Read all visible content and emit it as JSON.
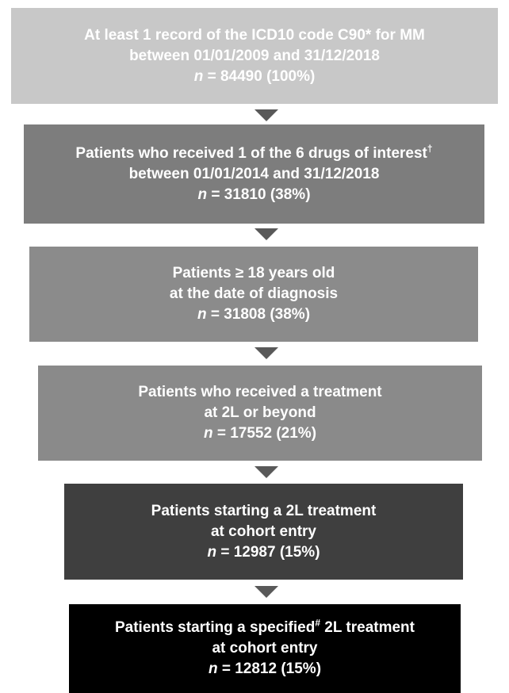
{
  "nodes": [
    {
      "line1": "At least 1 record of the ICD10 code C90* for MM",
      "line2": "between 01/01/2009 and 31/12/2018",
      "n_symbol": "n",
      "count": " = 84490 (100%)"
    },
    {
      "line1": "Patients who received 1 of the 6 drugs of interest",
      "line1_mark": "†",
      "line2": "between 01/01/2014 and 31/12/2018",
      "n_symbol": "n",
      "count": " = 31810 (38%)"
    },
    {
      "line1": "Patients ≥ 18 years old",
      "line2": "at the date of diagnosis",
      "n_symbol": "n",
      "count": " = 31808 (38%)"
    },
    {
      "line1": "Patients who received a treatment",
      "line2": "at 2L or beyond",
      "n_symbol": "n",
      "count": " = 17552 (21%)"
    },
    {
      "line1": "Patients starting a 2L treatment",
      "line2": "at cohort entry",
      "n_symbol": "n",
      "count": " = 12987 (15%)"
    },
    {
      "line1": "Patients starting a specified",
      "line1_mark": "#",
      "line1_rest": " 2L treatment",
      "line2": "at cohort entry",
      "n_symbol": "n",
      "count": " = 12812 (15%)"
    }
  ]
}
